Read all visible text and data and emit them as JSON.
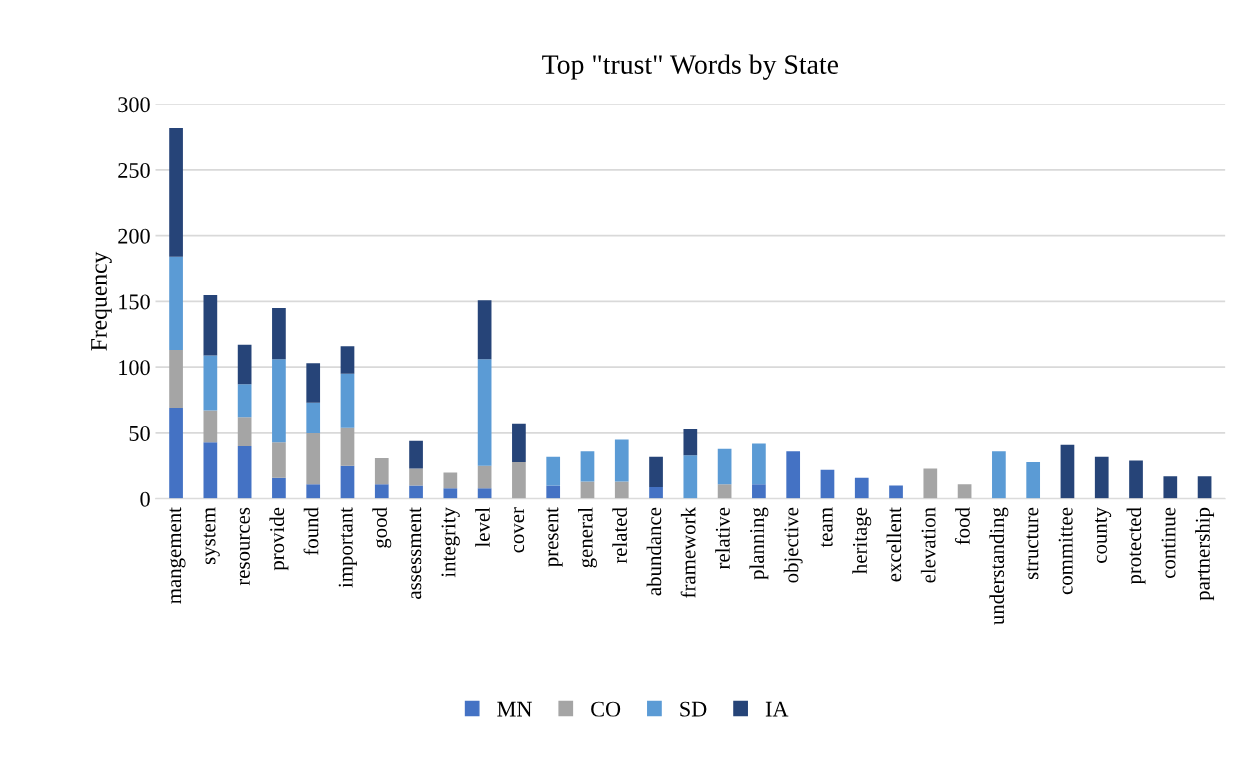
{
  "chart_data": {
    "type": "bar",
    "title": "Top \"trust\" Words by State",
    "ylabel": "Frequency",
    "stacked": true,
    "categories": [
      "mangement",
      "system",
      "resources",
      "provide",
      "found",
      "important",
      "good",
      "assessment",
      "integrity",
      "level",
      "cover",
      "present",
      "general",
      "related",
      "abundance",
      "framework",
      "relative",
      "planning",
      "objective",
      "team",
      "heritage",
      "excellent",
      "elevation",
      "food",
      "understanding",
      "structure",
      "committee",
      "county",
      "protected",
      "continue",
      "partnership"
    ],
    "series": [
      {
        "name": "MN",
        "color": "#4472c4",
        "values": [
          69,
          43,
          40,
          16,
          11,
          25,
          11,
          10,
          8,
          8,
          null,
          10,
          null,
          null,
          9,
          null,
          null,
          11,
          36,
          22,
          16,
          10,
          null,
          null,
          null,
          null,
          null,
          null,
          null,
          null,
          null
        ]
      },
      {
        "name": "CO",
        "color": "#a5a5a5",
        "values": [
          44,
          24,
          22,
          27,
          39,
          29,
          20,
          13,
          12,
          17,
          28,
          null,
          13,
          13,
          null,
          null,
          11,
          null,
          null,
          null,
          null,
          null,
          23,
          11,
          null,
          null,
          null,
          null,
          null,
          null,
          null
        ]
      },
      {
        "name": "SD",
        "color": "#5b9bd5",
        "values": [
          71,
          42,
          25,
          63,
          23,
          41,
          null,
          null,
          null,
          81,
          null,
          22,
          23,
          32,
          null,
          33,
          27,
          31,
          null,
          null,
          null,
          null,
          null,
          null,
          36,
          28,
          null,
          null,
          null,
          null,
          null
        ]
      },
      {
        "name": "IA",
        "color": "#264478",
        "values": [
          98,
          46,
          30,
          39,
          30,
          21,
          null,
          21,
          null,
          45,
          29,
          null,
          null,
          null,
          23,
          20,
          null,
          null,
          null,
          null,
          null,
          null,
          null,
          null,
          null,
          null,
          41,
          32,
          29,
          17,
          17
        ]
      }
    ],
    "ylim": [
      0,
      300
    ],
    "yticks": [
      0,
      50,
      100,
      150,
      200,
      250,
      300
    ],
    "grid": "y",
    "legend": "bottom"
  }
}
